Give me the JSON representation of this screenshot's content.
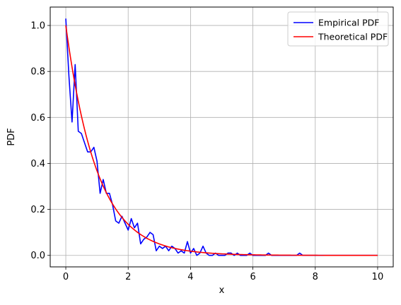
{
  "chart_data": {
    "type": "line",
    "title": "",
    "xlabel": "x",
    "ylabel": "PDF",
    "xlim": [
      -0.5,
      10.5
    ],
    "ylim": [
      -0.05,
      1.08
    ],
    "xticks": [
      0,
      2,
      4,
      6,
      8,
      10
    ],
    "yticks": [
      0.0,
      0.2,
      0.4,
      0.6,
      0.8,
      1.0
    ],
    "xtick_labels": [
      "0",
      "2",
      "4",
      "6",
      "8",
      "10"
    ],
    "ytick_labels": [
      "0.0",
      "0.2",
      "0.4",
      "0.6",
      "0.8",
      "1.0"
    ],
    "grid": true,
    "legend_position": "top-right",
    "series": [
      {
        "name": "Empirical PDF",
        "color": "#0000ff",
        "x": [
          0.0,
          0.1,
          0.2,
          0.3,
          0.4,
          0.5,
          0.6,
          0.7,
          0.8,
          0.9,
          1.0,
          1.1,
          1.2,
          1.3,
          1.4,
          1.5,
          1.6,
          1.7,
          1.8,
          1.9,
          2.0,
          2.1,
          2.2,
          2.3,
          2.4,
          2.5,
          2.6,
          2.7,
          2.8,
          2.9,
          3.0,
          3.1,
          3.2,
          3.3,
          3.4,
          3.5,
          3.6,
          3.7,
          3.8,
          3.9,
          4.0,
          4.1,
          4.2,
          4.3,
          4.4,
          4.5,
          4.6,
          4.7,
          4.8,
          4.9,
          5.0,
          5.1,
          5.2,
          5.3,
          5.4,
          5.5,
          5.6,
          5.7,
          5.8,
          5.9,
          6.0,
          6.1,
          6.2,
          6.3,
          6.4,
          6.5,
          6.6,
          6.7,
          6.8,
          6.9,
          7.0,
          7.1,
          7.2,
          7.3,
          7.4,
          7.5,
          7.6,
          7.7,
          7.8,
          7.9,
          8.0,
          8.5,
          9.0,
          9.5,
          10.0
        ],
        "y": [
          1.03,
          0.78,
          0.58,
          0.83,
          0.54,
          0.53,
          0.49,
          0.45,
          0.45,
          0.47,
          0.41,
          0.27,
          0.33,
          0.27,
          0.27,
          0.22,
          0.15,
          0.14,
          0.17,
          0.14,
          0.11,
          0.16,
          0.12,
          0.14,
          0.05,
          0.07,
          0.08,
          0.1,
          0.09,
          0.02,
          0.04,
          0.03,
          0.04,
          0.02,
          0.04,
          0.03,
          0.01,
          0.02,
          0.01,
          0.06,
          0.01,
          0.03,
          0.0,
          0.01,
          0.04,
          0.01,
          0.0,
          0.0,
          0.01,
          0.0,
          0.0,
          0.0,
          0.01,
          0.01,
          0.0,
          0.01,
          0.0,
          0.0,
          0.0,
          0.01,
          0.0,
          0.0,
          0.0,
          0.0,
          0.0,
          0.01,
          0.0,
          0.0,
          0.0,
          0.0,
          0.0,
          0.0,
          0.0,
          0.0,
          0.0,
          0.01,
          0.0,
          0.0,
          0.0,
          0.0,
          0.0,
          0.0,
          0.0,
          0.0,
          0.0
        ]
      },
      {
        "name": "Theoretical PDF",
        "color": "#ff0000",
        "function": "exp(-x)",
        "x_range": [
          0,
          10
        ]
      }
    ]
  }
}
